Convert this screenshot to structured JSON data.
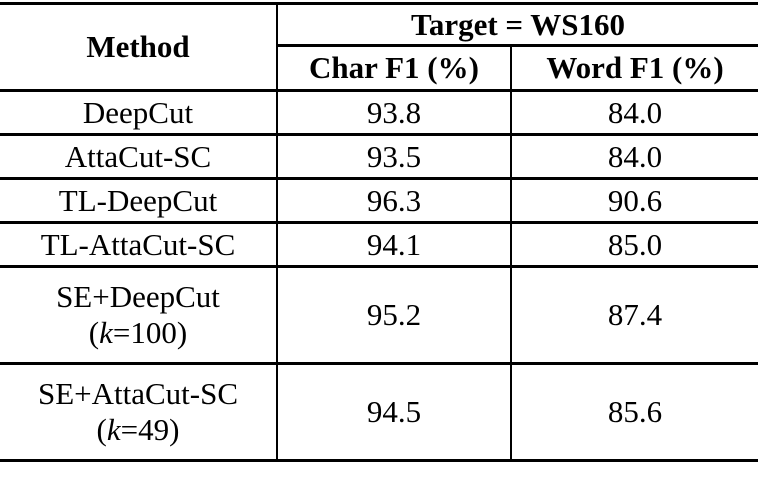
{
  "table": {
    "header": {
      "method_label": "Method",
      "target_label": "Target = WS160",
      "char_f1_label": "Char F1 (%)",
      "word_f1_label": "Word F1 (%)"
    },
    "rows": [
      {
        "method": "DeepCut",
        "char_f1": "93.8",
        "word_f1": "84.0"
      },
      {
        "method": "AttaCut-SC",
        "char_f1": "93.5",
        "word_f1": "84.0"
      },
      {
        "method": "TL-DeepCut",
        "char_f1": "96.3",
        "word_f1": "90.6"
      },
      {
        "method": "TL-AttaCut-SC",
        "char_f1": "94.1",
        "word_f1": "85.0"
      },
      {
        "method": "SE+DeepCut",
        "sub": {
          "open": "(",
          "var": "k",
          "rest": "=100)"
        },
        "char_f1": "95.2",
        "word_f1": "87.4"
      },
      {
        "method": "SE+AttaCut-SC",
        "sub": {
          "open": "(",
          "var": "k",
          "rest": "=49)"
        },
        "char_f1": "94.5",
        "word_f1": "85.6"
      }
    ],
    "colors": {
      "text": "#000000",
      "background": "#ffffff",
      "rule": "#000000"
    }
  }
}
